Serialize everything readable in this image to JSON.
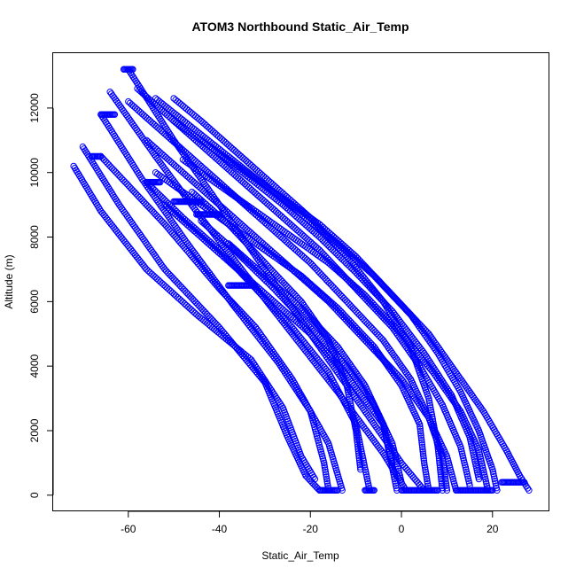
{
  "chart_data": {
    "type": "scatter",
    "title": "ATOM3 Northbound Static_Air_Temp",
    "xlabel": "Static_Air_Temp",
    "ylabel": "Altitude (m)",
    "xlim": [
      -76.5,
      32.5
    ],
    "ylim": [
      -500,
      13700
    ],
    "x_ticks": [
      -60,
      -40,
      -20,
      0,
      20
    ],
    "x_tick_labels": [
      "-60",
      "-40",
      "-20",
      "0",
      "20"
    ],
    "y_ticks": [
      0,
      2000,
      4000,
      6000,
      8000,
      10000,
      12000
    ],
    "y_tick_labels": [
      "0",
      "2000",
      "4000",
      "6000",
      "8000",
      "10000",
      "12000"
    ],
    "grid": false,
    "marker": "open-circle",
    "color": "#0000ff",
    "series": [
      {
        "values": [
          [
            -60,
            13200
          ],
          [
            -50,
            11000
          ],
          [
            -40,
            9000
          ],
          [
            -30,
            7000
          ],
          [
            -20,
            5000
          ],
          [
            -10,
            3000
          ],
          [
            0,
            1000
          ],
          [
            5,
            150
          ]
        ]
      },
      {
        "values": [
          [
            -64,
            12500
          ],
          [
            -54,
            10500
          ],
          [
            -44,
            8600
          ],
          [
            -34,
            6800
          ],
          [
            -24,
            5000
          ],
          [
            -14,
            3200
          ],
          [
            -4,
            1300
          ],
          [
            1,
            150
          ]
        ]
      },
      {
        "values": [
          [
            -66,
            11800
          ],
          [
            -57,
            9800
          ],
          [
            -47,
            7800
          ],
          [
            -37,
            5900
          ],
          [
            -27,
            4100
          ],
          [
            -20,
            2600
          ],
          [
            -17,
            1000
          ],
          [
            -16,
            150
          ]
        ]
      },
      {
        "values": [
          [
            -70,
            10800
          ],
          [
            -62,
            9000
          ],
          [
            -52,
            7000
          ],
          [
            -40,
            5200
          ],
          [
            -30,
            3500
          ],
          [
            -25,
            1800
          ],
          [
            -21,
            600
          ],
          [
            -18,
            150
          ]
        ]
      },
      {
        "values": [
          [
            -72,
            10200
          ],
          [
            -66,
            8800
          ],
          [
            -56,
            7000
          ],
          [
            -45,
            5600
          ],
          [
            -33,
            4200
          ],
          [
            -26,
            2700
          ],
          [
            -22,
            1200
          ],
          [
            -19,
            500
          ]
        ]
      },
      {
        "values": [
          [
            -66,
            10500
          ],
          [
            -60,
            9600
          ],
          [
            -52,
            8400
          ],
          [
            -46,
            7400
          ],
          [
            -40,
            6400
          ],
          [
            -32,
            5200
          ],
          [
            -24,
            3600
          ],
          [
            -16,
            1600
          ],
          [
            -13,
            150
          ]
        ]
      },
      {
        "values": [
          [
            -56,
            9700
          ],
          [
            -48,
            8600
          ],
          [
            -40,
            7600
          ],
          [
            -32,
            6400
          ],
          [
            -24,
            5200
          ],
          [
            -16,
            3800
          ],
          [
            -10,
            2200
          ],
          [
            -7,
            150
          ]
        ]
      },
      {
        "values": [
          [
            -52,
            9000
          ],
          [
            -44,
            8000
          ],
          [
            -36,
            7000
          ],
          [
            -28,
            6000
          ],
          [
            -20,
            5000
          ],
          [
            -12,
            3700
          ],
          [
            -4,
            2200
          ],
          [
            -1,
            150
          ]
        ]
      },
      {
        "values": [
          [
            -60,
            12200
          ],
          [
            -52,
            11200
          ],
          [
            -44,
            10200
          ],
          [
            -36,
            9200
          ],
          [
            -28,
            8200
          ],
          [
            -20,
            7200
          ],
          [
            -12,
            6000
          ],
          [
            -4,
            4800
          ],
          [
            2,
            3600
          ],
          [
            6,
            2400
          ],
          [
            9,
            1200
          ],
          [
            10,
            150
          ]
        ]
      },
      {
        "values": [
          [
            -58,
            12600
          ],
          [
            -50,
            11600
          ],
          [
            -42,
            10600
          ],
          [
            -34,
            9600
          ],
          [
            -26,
            8600
          ],
          [
            -18,
            7600
          ],
          [
            -10,
            6400
          ],
          [
            -2,
            5200
          ],
          [
            4,
            4000
          ],
          [
            9,
            2800
          ],
          [
            13,
            1500
          ],
          [
            15,
            300
          ]
        ]
      },
      {
        "values": [
          [
            -56,
            11000
          ],
          [
            -48,
            10000
          ],
          [
            -40,
            9000
          ],
          [
            -32,
            8000
          ],
          [
            -24,
            7000
          ],
          [
            -16,
            6000
          ],
          [
            -8,
            4800
          ],
          [
            0,
            3600
          ],
          [
            6,
            2400
          ],
          [
            10,
            1200
          ],
          [
            12,
            150
          ]
        ]
      },
      {
        "values": [
          [
            -54,
            12300
          ],
          [
            -46,
            11400
          ],
          [
            -38,
            10500
          ],
          [
            -30,
            9600
          ],
          [
            -22,
            8700
          ],
          [
            -14,
            7800
          ],
          [
            -6,
            6800
          ],
          [
            2,
            5600
          ],
          [
            8,
            4400
          ],
          [
            13,
            3200
          ],
          [
            17,
            2000
          ],
          [
            20,
            800
          ],
          [
            21,
            150
          ]
        ]
      },
      {
        "values": [
          [
            -50,
            11600
          ],
          [
            -42,
            10800
          ],
          [
            -34,
            10000
          ],
          [
            -26,
            9200
          ],
          [
            -18,
            8400
          ],
          [
            -10,
            7400
          ],
          [
            -2,
            6200
          ],
          [
            6,
            5000
          ],
          [
            12,
            3800
          ],
          [
            18,
            2600
          ],
          [
            23,
            1400
          ],
          [
            26,
            600
          ],
          [
            28,
            150
          ]
        ]
      },
      {
        "values": [
          [
            -48,
            10400
          ],
          [
            -40,
            9600
          ],
          [
            -32,
            8800
          ],
          [
            -24,
            8000
          ],
          [
            -16,
            7200
          ],
          [
            -8,
            6200
          ],
          [
            0,
            5000
          ],
          [
            7,
            3800
          ],
          [
            13,
            2600
          ],
          [
            17,
            1400
          ],
          [
            19,
            150
          ]
        ]
      },
      {
        "values": [
          [
            -54,
            10000
          ],
          [
            -46,
            9200
          ],
          [
            -38,
            8400
          ],
          [
            -30,
            7600
          ],
          [
            -22,
            6800
          ],
          [
            -14,
            5800
          ],
          [
            -6,
            4600
          ],
          [
            0,
            3400
          ],
          [
            4,
            2200
          ],
          [
            5,
            1000
          ],
          [
            6,
            150
          ]
        ]
      },
      {
        "values": [
          [
            -50,
            12300
          ],
          [
            -44,
            11600
          ],
          [
            -36,
            10600
          ],
          [
            -28,
            9600
          ],
          [
            -20,
            8600
          ],
          [
            -12,
            7400
          ],
          [
            -4,
            6000
          ],
          [
            2,
            4600
          ],
          [
            6,
            3000
          ],
          [
            8,
            1500
          ],
          [
            9,
            150
          ]
        ]
      },
      {
        "values": [
          [
            -46,
            9400
          ],
          [
            -38,
            8400
          ],
          [
            -30,
            7200
          ],
          [
            -22,
            6000
          ],
          [
            -16,
            4800
          ],
          [
            -12,
            3400
          ],
          [
            -10,
            2000
          ],
          [
            -9,
            800
          ]
        ]
      },
      {
        "values": [
          [
            -44,
            8500
          ],
          [
            -36,
            7500
          ],
          [
            -28,
            6400
          ],
          [
            -20,
            5200
          ],
          [
            -12,
            4000
          ],
          [
            -6,
            2800
          ],
          [
            -2,
            1600
          ],
          [
            0,
            400
          ]
        ]
      },
      {
        "values": [
          [
            -42,
            10800
          ],
          [
            -34,
            9900
          ],
          [
            -26,
            9000
          ],
          [
            -18,
            8000
          ],
          [
            -10,
            6900
          ],
          [
            -2,
            5700
          ],
          [
            5,
            4400
          ],
          [
            11,
            3100
          ],
          [
            15,
            1800
          ],
          [
            17,
            500
          ]
        ]
      },
      {
        "values": [
          [
            -38,
            7800
          ],
          [
            -30,
            6800
          ],
          [
            -22,
            5800
          ],
          [
            -14,
            4600
          ],
          [
            -8,
            3400
          ],
          [
            -4,
            2200
          ],
          [
            -2,
            1000
          ]
        ]
      }
    ],
    "clusters": [
      {
        "x": [
          -61,
          -59
        ],
        "y": 13200
      },
      {
        "x": [
          -66,
          -63
        ],
        "y": 11800
      },
      {
        "x": [
          -68,
          -66
        ],
        "y": 10500
      },
      {
        "x": [
          -56,
          -53
        ],
        "y": 9700
      },
      {
        "x": [
          -50,
          -44
        ],
        "y": 9100
      },
      {
        "x": [
          -45,
          -40
        ],
        "y": 8700
      },
      {
        "x": [
          -38,
          -33
        ],
        "y": 6500
      },
      {
        "x": [
          -18,
          -14
        ],
        "y": 150
      },
      {
        "x": [
          -8,
          -6
        ],
        "y": 150
      },
      {
        "x": [
          0,
          8
        ],
        "y": 150
      },
      {
        "x": [
          12,
          20
        ],
        "y": 150
      },
      {
        "x": [
          22,
          27
        ],
        "y": 400
      }
    ]
  }
}
